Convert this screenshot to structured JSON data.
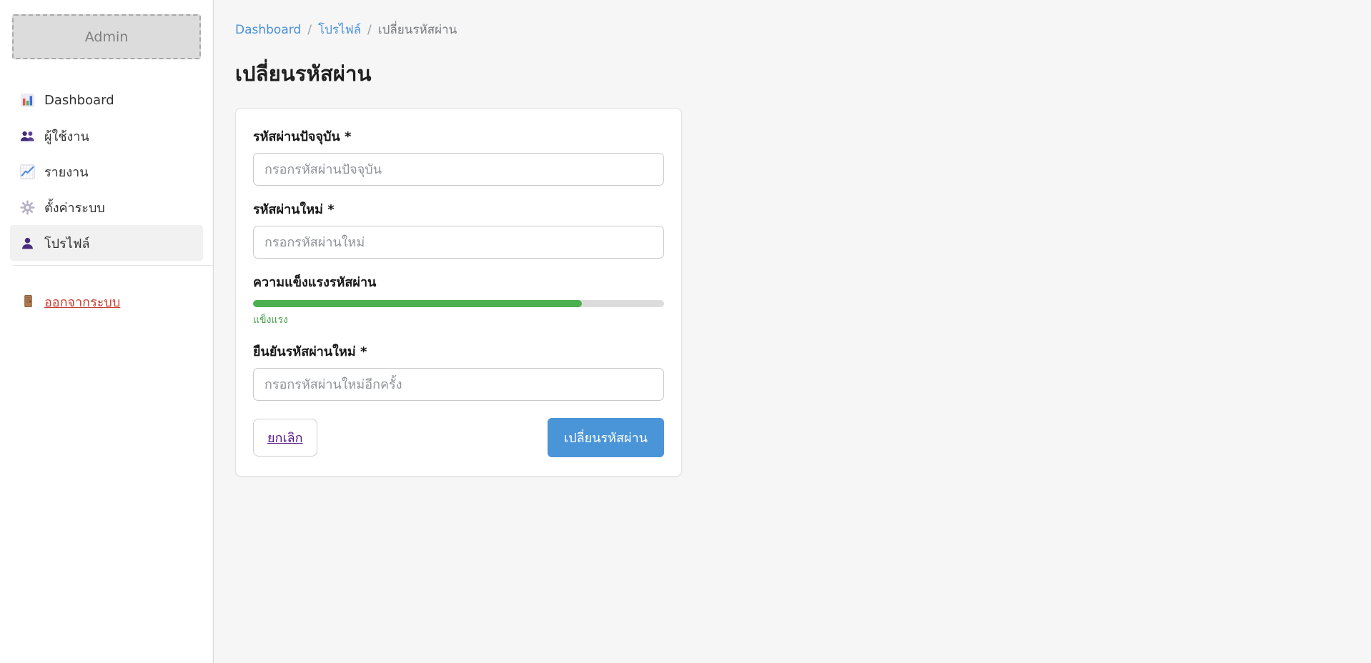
{
  "sidebar": {
    "logo_text": "Admin",
    "items": [
      {
        "label": "Dashboard",
        "icon": "bar-chart-icon",
        "active": false
      },
      {
        "label": "ผู้ใช้งาน",
        "icon": "users-icon",
        "active": false
      },
      {
        "label": "รายงาน",
        "icon": "line-chart-icon",
        "active": false
      },
      {
        "label": "ตั้งค่าระบบ",
        "icon": "gear-icon",
        "active": false
      },
      {
        "label": "โปรไฟล์",
        "icon": "person-icon",
        "active": true
      }
    ],
    "logout_label": "ออกจากระบบ"
  },
  "breadcrumb": {
    "separator": "/",
    "links": [
      "Dashboard",
      "โปรไฟล์"
    ],
    "current": "เปลี่ยนรหัสผ่าน"
  },
  "page": {
    "title": "เปลี่ยนรหัสผ่าน"
  },
  "form": {
    "current_password": {
      "label": "รหัสผ่านปัจจุบัน *",
      "placeholder": "กรอกรหัสผ่านปัจจุบัน",
      "value": ""
    },
    "new_password": {
      "label": "รหัสผ่านใหม่ *",
      "placeholder": "กรอกรหัสผ่านใหม่",
      "value": ""
    },
    "strength": {
      "label": "ความแข็งแรงรหัสผ่าน",
      "status": "แข็งแรง",
      "percent": 80,
      "fill_color": "#4caf50",
      "track_color": "#dcdcdc"
    },
    "confirm_password": {
      "label": "ยืนยันรหัสผ่านใหม่ *",
      "placeholder": "กรอกรหัสผ่านใหม่อีกครั้ง",
      "value": ""
    },
    "cancel_label": "ยกเลิก",
    "submit_label": "เปลี่ยนรหัสผ่าน"
  },
  "colors": {
    "accent_blue": "#4a94d8",
    "link_blue": "#4a90d9",
    "logout_red": "#c73b2d",
    "cancel_purple": "#551a8b",
    "strength_green": "#4caf50"
  }
}
